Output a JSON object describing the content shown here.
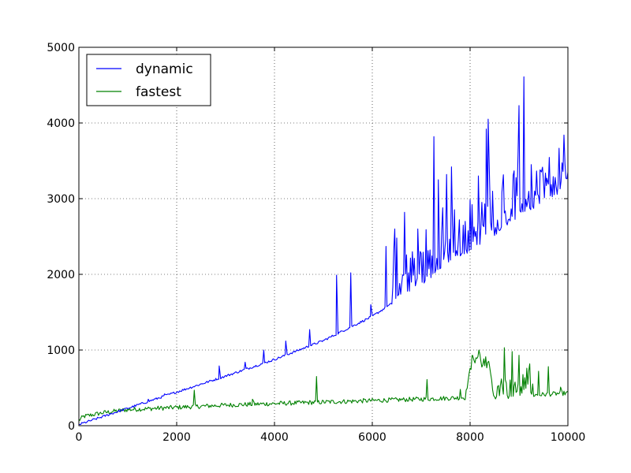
{
  "chart_data": {
    "type": "line",
    "title": "",
    "xlabel": "",
    "ylabel": "",
    "xlim": [
      0,
      10000
    ],
    "ylim": [
      0,
      5000
    ],
    "xticks": [
      0,
      2000,
      4000,
      6000,
      8000,
      10000
    ],
    "yticks": [
      0,
      1000,
      2000,
      3000,
      4000,
      5000
    ],
    "xtick_labels": [
      "0",
      "2000",
      "4000",
      "6000",
      "8000",
      "10000"
    ],
    "ytick_labels": [
      "0",
      "1000",
      "2000",
      "3000",
      "4000",
      "5000"
    ],
    "grid": true,
    "legend_position": "top-left",
    "series": [
      {
        "name": "dynamic",
        "color": "#0000ff",
        "baseline": {
          "x": [
            0,
            1000,
            2000,
            3000,
            4000,
            5000,
            6000,
            7000,
            8000,
            9000,
            10000
          ],
          "y": [
            0,
            215,
            430,
            640,
            860,
            1110,
            1430,
            1850,
            2300,
            2720,
            3120
          ]
        },
        "spikes": [
          {
            "x": 1420,
            "y": 350
          },
          {
            "x": 1750,
            "y": 420
          },
          {
            "x": 2870,
            "y": 790
          },
          {
            "x": 3400,
            "y": 840
          },
          {
            "x": 3780,
            "y": 1000
          },
          {
            "x": 4230,
            "y": 1120
          },
          {
            "x": 4720,
            "y": 1270
          },
          {
            "x": 5270,
            "y": 1990
          },
          {
            "x": 5560,
            "y": 2020
          },
          {
            "x": 5970,
            "y": 1600
          },
          {
            "x": 6280,
            "y": 2370
          },
          {
            "x": 6460,
            "y": 2600
          },
          {
            "x": 6660,
            "y": 2820
          },
          {
            "x": 6930,
            "y": 2600
          },
          {
            "x": 7260,
            "y": 3820
          },
          {
            "x": 7350,
            "y": 3250
          },
          {
            "x": 7520,
            "y": 3320
          },
          {
            "x": 7620,
            "y": 3420
          },
          {
            "x": 7900,
            "y": 2700
          },
          {
            "x": 8170,
            "y": 3300
          },
          {
            "x": 8330,
            "y": 3920
          },
          {
            "x": 8370,
            "y": 4050
          },
          {
            "x": 8650,
            "y": 3080
          },
          {
            "x": 9000,
            "y": 4230
          },
          {
            "x": 9100,
            "y": 4610
          },
          {
            "x": 9250,
            "y": 3450
          },
          {
            "x": 9430,
            "y": 3380
          },
          {
            "x": 9570,
            "y": 3270
          },
          {
            "x": 9800,
            "y": 3190
          },
          {
            "x": 9960,
            "y": 3270
          }
        ]
      },
      {
        "name": "fastest",
        "color": "#008000",
        "baseline": {
          "x": [
            0,
            100,
            500,
            1000,
            2000,
            3000,
            4000,
            5000,
            6000,
            7000,
            7900,
            8000,
            8150,
            8400,
            8500,
            9000,
            10000
          ],
          "y": [
            60,
            110,
            160,
            200,
            230,
            260,
            280,
            300,
            320,
            340,
            360,
            730,
            790,
            640,
            350,
            380,
            420
          ]
        },
        "spikes": [
          {
            "x": 2360,
            "y": 470
          },
          {
            "x": 3550,
            "y": 350
          },
          {
            "x": 4860,
            "y": 650
          },
          {
            "x": 7120,
            "y": 610
          },
          {
            "x": 7800,
            "y": 480
          },
          {
            "x": 8050,
            "y": 930
          },
          {
            "x": 8180,
            "y": 1000
          },
          {
            "x": 8390,
            "y": 820
          },
          {
            "x": 8700,
            "y": 1030
          },
          {
            "x": 8860,
            "y": 980
          },
          {
            "x": 9000,
            "y": 930
          },
          {
            "x": 9160,
            "y": 760
          },
          {
            "x": 9400,
            "y": 720
          },
          {
            "x": 9600,
            "y": 780
          },
          {
            "x": 9850,
            "y": 510
          }
        ]
      }
    ]
  }
}
